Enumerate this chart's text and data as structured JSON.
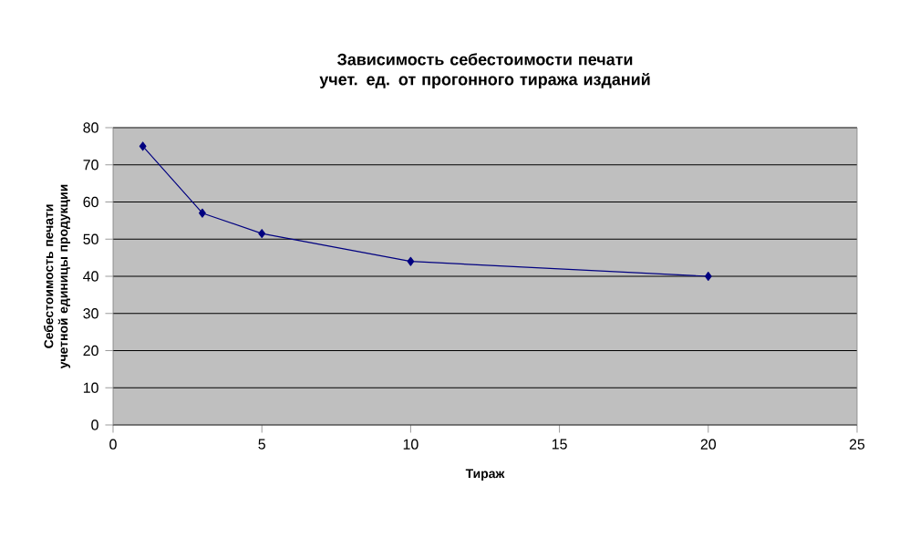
{
  "chart_data": {
    "type": "line",
    "title": "Зависимость себестоимости печати учет. ед. от прогонного тиража изданий",
    "xlabel": "Тираж",
    "ylabel": "Себестоимость печати учетной единицы продукции",
    "x": [
      1,
      3,
      5,
      10,
      20
    ],
    "series": [
      {
        "color": "#000080",
        "values": [
          75,
          57,
          51.5,
          44,
          40
        ]
      }
    ],
    "xlim": [
      0,
      25
    ],
    "ylim": [
      0,
      80
    ],
    "xticks": [
      0,
      5,
      10,
      15,
      20,
      25
    ],
    "yticks": [
      0,
      10,
      20,
      30,
      40,
      50,
      60,
      70,
      80
    ],
    "grid": "y",
    "marker": "diamond",
    "line_style": "solid"
  }
}
